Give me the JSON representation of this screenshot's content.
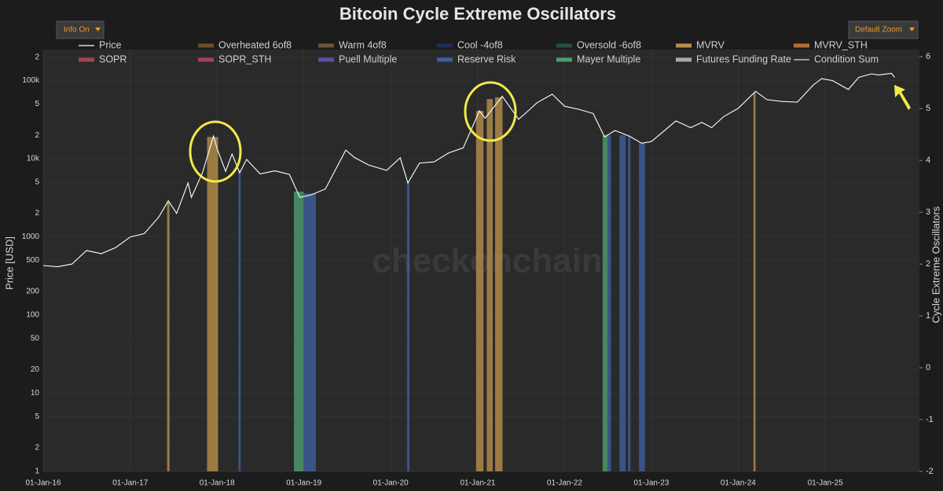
{
  "chart_data": {
    "type": "line",
    "title": "Bitcoin Cycle Extreme Oscillators",
    "watermark": "checkonchain",
    "controls": [
      "Info On",
      "Default Zoom"
    ],
    "ylabel": "Price [USD]",
    "y2label": "Cycle Extreme Oscillators",
    "log_y": true,
    "grid": true,
    "ylim": [
      1,
      250000
    ],
    "yticks": [
      1,
      2,
      5,
      10,
      20,
      50,
      100,
      200,
      500,
      1000,
      {
        "value": 2000,
        "label": "2"
      },
      {
        "value": 5000,
        "label": "5"
      },
      {
        "value": 10000,
        "label": "10k"
      },
      {
        "value": 20000,
        "label": "2"
      },
      {
        "value": 50000,
        "label": "5"
      },
      {
        "value": 100000,
        "label": "100k"
      },
      {
        "value": 200000,
        "label": "2"
      }
    ],
    "y2lim": [
      -2,
      6.14
    ],
    "y2ticks": [
      -2,
      -1,
      0,
      1,
      2,
      3,
      4,
      5,
      6
    ],
    "xlim": [
      "2016-01-01",
      "2026-02-01"
    ],
    "xticks": [
      {
        "value": "2016-01-01",
        "label": "01-Jan-16"
      },
      {
        "value": "2017-01-01",
        "label": "01-Jan-17"
      },
      {
        "value": "2018-01-01",
        "label": "01-Jan-18"
      },
      {
        "value": "2019-01-01",
        "label": "01-Jan-19"
      },
      {
        "value": "2020-01-01",
        "label": "01-Jan-20"
      },
      {
        "value": "2021-01-01",
        "label": "01-Jan-21"
      },
      {
        "value": "2022-01-01",
        "label": "01-Jan-22"
      },
      {
        "value": "2023-01-01",
        "label": "01-Jan-23"
      },
      {
        "value": "2024-01-01",
        "label": "01-Jan-24"
      },
      {
        "value": "2025-01-01",
        "label": "01-Jan-25"
      }
    ],
    "series": [
      {
        "name": "Price",
        "color": "#ffffff",
        "x": [
          "2016-01-01",
          "2016-03-01",
          "2016-05-01",
          "2016-07-01",
          "2016-09-01",
          "2016-11-01",
          "2017-01-01",
          "2017-03-01",
          "2017-05-01",
          "2017-06-10",
          "2017-07-15",
          "2017-09-01",
          "2017-09-15",
          "2017-11-01",
          "2017-12-17",
          "2018-01-01",
          "2018-02-06",
          "2018-03-05",
          "2018-04-06",
          "2018-05-05",
          "2018-07-01",
          "2018-09-01",
          "2018-11-01",
          "2018-12-15",
          "2019-02-01",
          "2019-04-01",
          "2019-06-26",
          "2019-08-01",
          "2019-10-01",
          "2019-12-15",
          "2020-02-10",
          "2020-03-13",
          "2020-05-01",
          "2020-07-01",
          "2020-09-01",
          "2020-11-01",
          "2021-01-08",
          "2021-02-01",
          "2021-04-14",
          "2021-06-22",
          "2021-08-01",
          "2021-09-07",
          "2021-11-10",
          "2022-01-01",
          "2022-03-01",
          "2022-05-01",
          "2022-06-18",
          "2022-08-01",
          "2022-10-01",
          "2022-11-21",
          "2023-01-01",
          "2023-03-01",
          "2023-04-14",
          "2023-06-15",
          "2023-08-01",
          "2023-09-11",
          "2023-11-01",
          "2024-01-01",
          "2024-03-14",
          "2024-05-01",
          "2024-07-05",
          "2024-09-06",
          "2024-11-12",
          "2024-12-17",
          "2025-02-01",
          "2025-04-08",
          "2025-05-22",
          "2025-07-14",
          "2025-08-14",
          "2025-10-06",
          "2025-10-20"
        ],
        "values": [
          430,
          415,
          450,
          670,
          610,
          730,
          1000,
          1100,
          1800,
          2900,
          2000,
          4900,
          3200,
          6700,
          19500,
          13500,
          6900,
          11500,
          6600,
          9800,
          6400,
          7000,
          6300,
          3200,
          3450,
          4100,
          12900,
          10400,
          8300,
          7100,
          10300,
          4900,
          8800,
          9100,
          11900,
          13800,
          41000,
          33000,
          63000,
          32000,
          41000,
          52000,
          67000,
          47000,
          43000,
          38000,
          19000,
          23000,
          19400,
          15800,
          16600,
          23500,
          30500,
          25000,
          29200,
          25000,
          34600,
          44200,
          73000,
          57000,
          54000,
          53000,
          88000,
          106000,
          100000,
          77000,
          110000,
          122000,
          118000,
          124000,
          110000
        ]
      },
      {
        "name": "Overheated 6of8",
        "color": "#6b4f2a"
      },
      {
        "name": "Warm 4of8",
        "color": "#6e5534"
      },
      {
        "name": "Cool -4of8",
        "color": "#1e2d55"
      },
      {
        "name": "Oversold -6of8",
        "color": "#27503f"
      },
      {
        "name": "MVRV",
        "color": "#b8904a",
        "bands": [
          {
            "start": "2017-06-05",
            "end": "2017-06-15",
            "top": 2800
          },
          {
            "start": "2017-11-20",
            "end": "2018-01-05",
            "top": 19000
          },
          {
            "start": "2020-12-25",
            "end": "2021-01-25",
            "top": 41000
          },
          {
            "start": "2021-02-08",
            "end": "2021-03-05",
            "top": 58000
          },
          {
            "start": "2021-03-15",
            "end": "2021-04-15",
            "top": 61000
          },
          {
            "start": "2024-03-05",
            "end": "2024-03-14",
            "top": 70000
          }
        ]
      },
      {
        "name": "MVRV_STH",
        "color": "#b0703a"
      },
      {
        "name": "SOPR",
        "color": "#a24552"
      },
      {
        "name": "SOPR_STH",
        "color": "#a2406f"
      },
      {
        "name": "Puell Multiple",
        "color": "#6150a3"
      },
      {
        "name": "Reserve Risk",
        "color": "#3f5fa3",
        "bands": [
          {
            "start": "2018-04-01",
            "end": "2018-04-10",
            "top": 6800
          },
          {
            "start": "2019-01-01",
            "end": "2019-02-20",
            "top": 3600
          },
          {
            "start": "2020-03-10",
            "end": "2020-03-20",
            "top": 5000
          },
          {
            "start": "2022-07-01",
            "end": "2022-07-15",
            "top": 20000
          },
          {
            "start": "2022-08-20",
            "end": "2022-09-15",
            "top": 20000
          },
          {
            "start": "2022-09-25",
            "end": "2022-10-05",
            "top": 19500
          },
          {
            "start": "2022-11-10",
            "end": "2022-12-05",
            "top": 16000
          }
        ]
      },
      {
        "name": "Mayer Multiple",
        "color": "#4f9e6e",
        "bands": [
          {
            "start": "2018-11-20",
            "end": "2018-12-31",
            "top": 3800
          },
          {
            "start": "2022-06-10",
            "end": "2022-07-01",
            "top": 20000
          }
        ]
      },
      {
        "name": "Futures Funding Rate",
        "color": "#aaaaaa"
      },
      {
        "name": "Condition Sum",
        "color": "#dddddd"
      }
    ]
  }
}
